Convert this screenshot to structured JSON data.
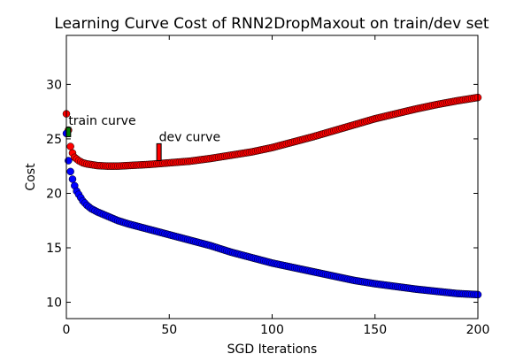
{
  "chart_data": {
    "type": "scatter",
    "title": "Learning Curve Cost of RNN2DropMaxout on train/dev set",
    "xlabel": "SGD Iterations",
    "ylabel": "Cost",
    "xlim": [
      0,
      200
    ],
    "ylim": [
      8.5,
      34.5
    ],
    "xticks": [
      0,
      50,
      100,
      150,
      200
    ],
    "yticks": [
      10,
      15,
      20,
      25,
      30
    ],
    "grid": false,
    "legend": "none",
    "series": [
      {
        "color": "#ff0000",
        "values": [
          [
            0,
            27.3
          ],
          [
            1,
            25.8
          ],
          [
            2,
            24.3
          ],
          [
            3,
            23.7
          ],
          [
            4,
            23.3
          ],
          [
            6,
            23.0
          ],
          [
            8,
            22.8
          ],
          [
            10,
            22.7
          ],
          [
            15,
            22.55
          ],
          [
            20,
            22.5
          ],
          [
            25,
            22.5
          ],
          [
            30,
            22.55
          ],
          [
            40,
            22.65
          ],
          [
            50,
            22.8
          ],
          [
            60,
            22.95
          ],
          [
            70,
            23.2
          ],
          [
            80,
            23.5
          ],
          [
            90,
            23.8
          ],
          [
            100,
            24.2
          ],
          [
            110,
            24.7
          ],
          [
            120,
            25.2
          ],
          [
            130,
            25.75
          ],
          [
            140,
            26.3
          ],
          [
            150,
            26.85
          ],
          [
            160,
            27.3
          ],
          [
            170,
            27.75
          ],
          [
            180,
            28.15
          ],
          [
            190,
            28.5
          ],
          [
            200,
            28.8
          ]
        ]
      },
      {
        "color": "#0000ff",
        "values": [
          [
            0,
            25.5
          ],
          [
            1,
            23.0
          ],
          [
            2,
            22.0
          ],
          [
            3,
            21.3
          ],
          [
            4,
            20.7
          ],
          [
            5,
            20.2
          ],
          [
            6,
            19.9
          ],
          [
            8,
            19.3
          ],
          [
            10,
            18.9
          ],
          [
            12,
            18.6
          ],
          [
            15,
            18.3
          ],
          [
            20,
            17.9
          ],
          [
            25,
            17.5
          ],
          [
            30,
            17.2
          ],
          [
            40,
            16.7
          ],
          [
            50,
            16.2
          ],
          [
            60,
            15.7
          ],
          [
            70,
            15.2
          ],
          [
            80,
            14.6
          ],
          [
            90,
            14.1
          ],
          [
            100,
            13.6
          ],
          [
            110,
            13.2
          ],
          [
            120,
            12.8
          ],
          [
            130,
            12.4
          ],
          [
            140,
            12.0
          ],
          [
            150,
            11.7
          ],
          [
            160,
            11.45
          ],
          [
            170,
            11.2
          ],
          [
            180,
            11.0
          ],
          [
            190,
            10.8
          ],
          [
            200,
            10.7
          ]
        ]
      }
    ],
    "annotations": [
      {
        "text": "train curve",
        "x": 1,
        "y": 26.3,
        "arrow_to": [
          1,
          25.2
        ],
        "arrow_color": "#008000"
      },
      {
        "text": "dev curve",
        "x": 45,
        "y": 24.8,
        "arrow_to": [
          45,
          23.0
        ],
        "arrow_color": "#ff0000"
      }
    ]
  }
}
